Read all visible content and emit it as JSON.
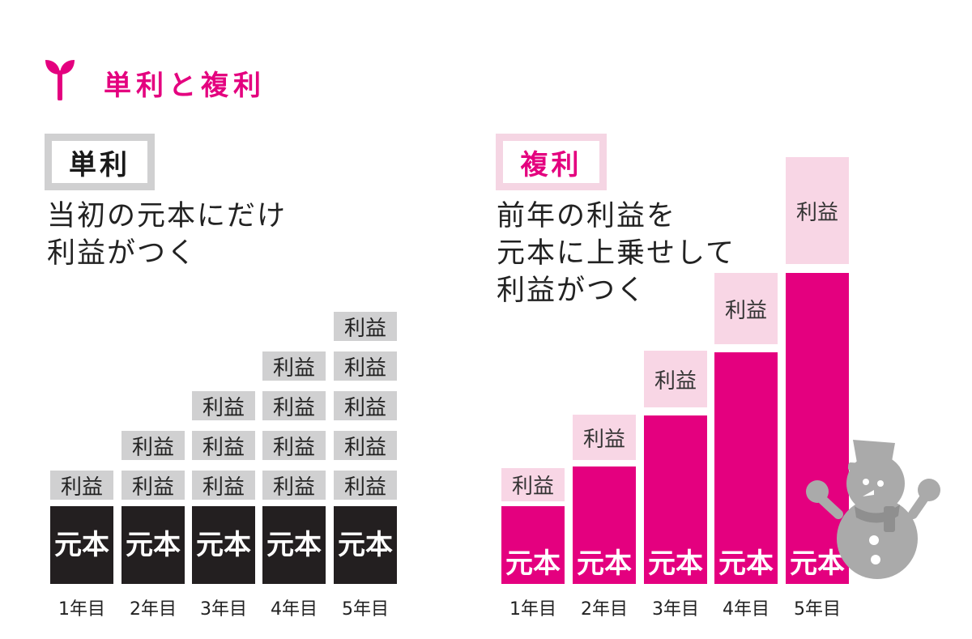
{
  "header": {
    "title": "単利と複利",
    "icon": "sprout-icon"
  },
  "simple": {
    "label": "単利",
    "description": [
      "当初の元本にだけ",
      "利益がつく"
    ],
    "principal_label": "元本",
    "interest_label": "利益",
    "years": [
      "1年目",
      "2年目",
      "3年目",
      "4年目",
      "5年目"
    ],
    "interest_blocks": [
      1,
      2,
      3,
      4,
      5
    ]
  },
  "compound": {
    "label": "複利",
    "description": [
      "前年の利益を",
      "元本に上乗せして",
      "利益がつく"
    ],
    "principal_label": "元本",
    "interest_label": "利益",
    "years": [
      "1年目",
      "2年目",
      "3年目",
      "4年目",
      "5年目"
    ]
  },
  "colors": {
    "accent": "#e4007f",
    "accent_light": "#f8d6e5",
    "gray": "#d0d0d1",
    "black": "#231f20",
    "snowman": "#aaaaaa"
  }
}
